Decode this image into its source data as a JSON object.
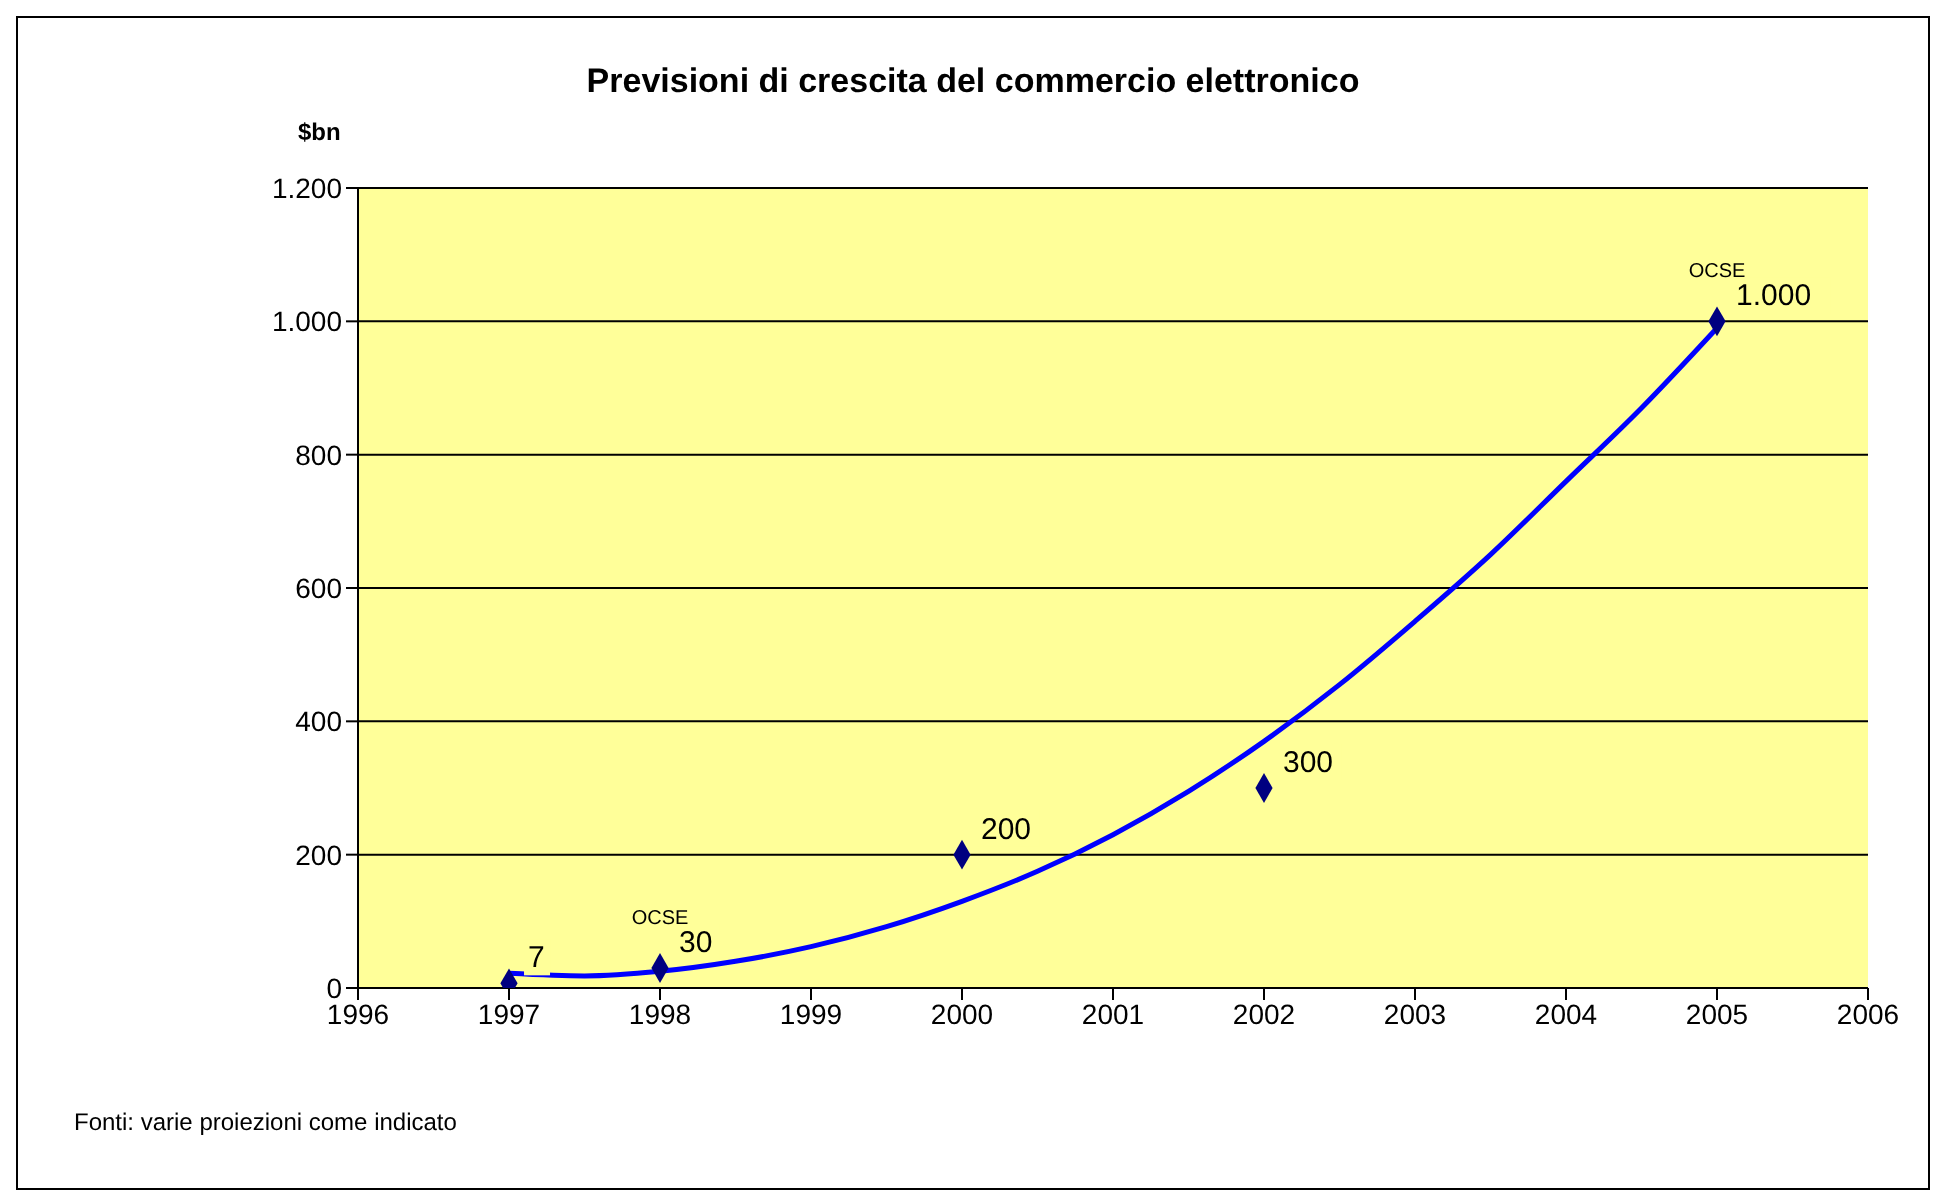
{
  "chart_data": {
    "type": "scatter",
    "title": "Previsioni di crescita del commercio elettronico",
    "ylabel": "$bn",
    "xlim": [
      1996,
      2006
    ],
    "xticks": [
      1996,
      1997,
      1998,
      1999,
      2000,
      2001,
      2002,
      2003,
      2004,
      2005,
      2006
    ],
    "ylim": [
      0,
      1200
    ],
    "yticks": [
      0,
      200,
      400,
      600,
      800,
      {
        "value": 1000,
        "label": "1.000"
      },
      {
        "value": 1200,
        "label": "1.200"
      }
    ],
    "grid": "y",
    "series": [
      {
        "color": "#000080",
        "marker": "diamond",
        "x": [
          1997,
          1998,
          2000,
          2002,
          2005
        ],
        "values": [
          7,
          30,
          200,
          300,
          1000
        ],
        "value_labels": [
          "7",
          "30",
          "200",
          "300",
          "1.000"
        ]
      },
      {
        "type": "line",
        "color": "#0000ff",
        "marker": "none",
        "x": [
          1997,
          1997.5,
          1998,
          1998.5,
          1999,
          1999.5,
          2000,
          2000.5,
          2001,
          2001.5,
          2002,
          2002.5,
          2003,
          2003.5,
          2004,
          2004.5,
          2005
        ],
        "values": [
          22,
          18,
          25,
          40,
          62,
          92,
          130,
          175,
          230,
          295,
          370,
          455,
          550,
          650,
          760,
          870,
          990
        ]
      }
    ],
    "annotations": [
      {
        "text": "OCSE",
        "x": 1998,
        "y": 30
      },
      {
        "text": "OCSE",
        "x": 2005,
        "y": 1000
      },
      "Fonti: varie proiezioni come indicato"
    ]
  }
}
